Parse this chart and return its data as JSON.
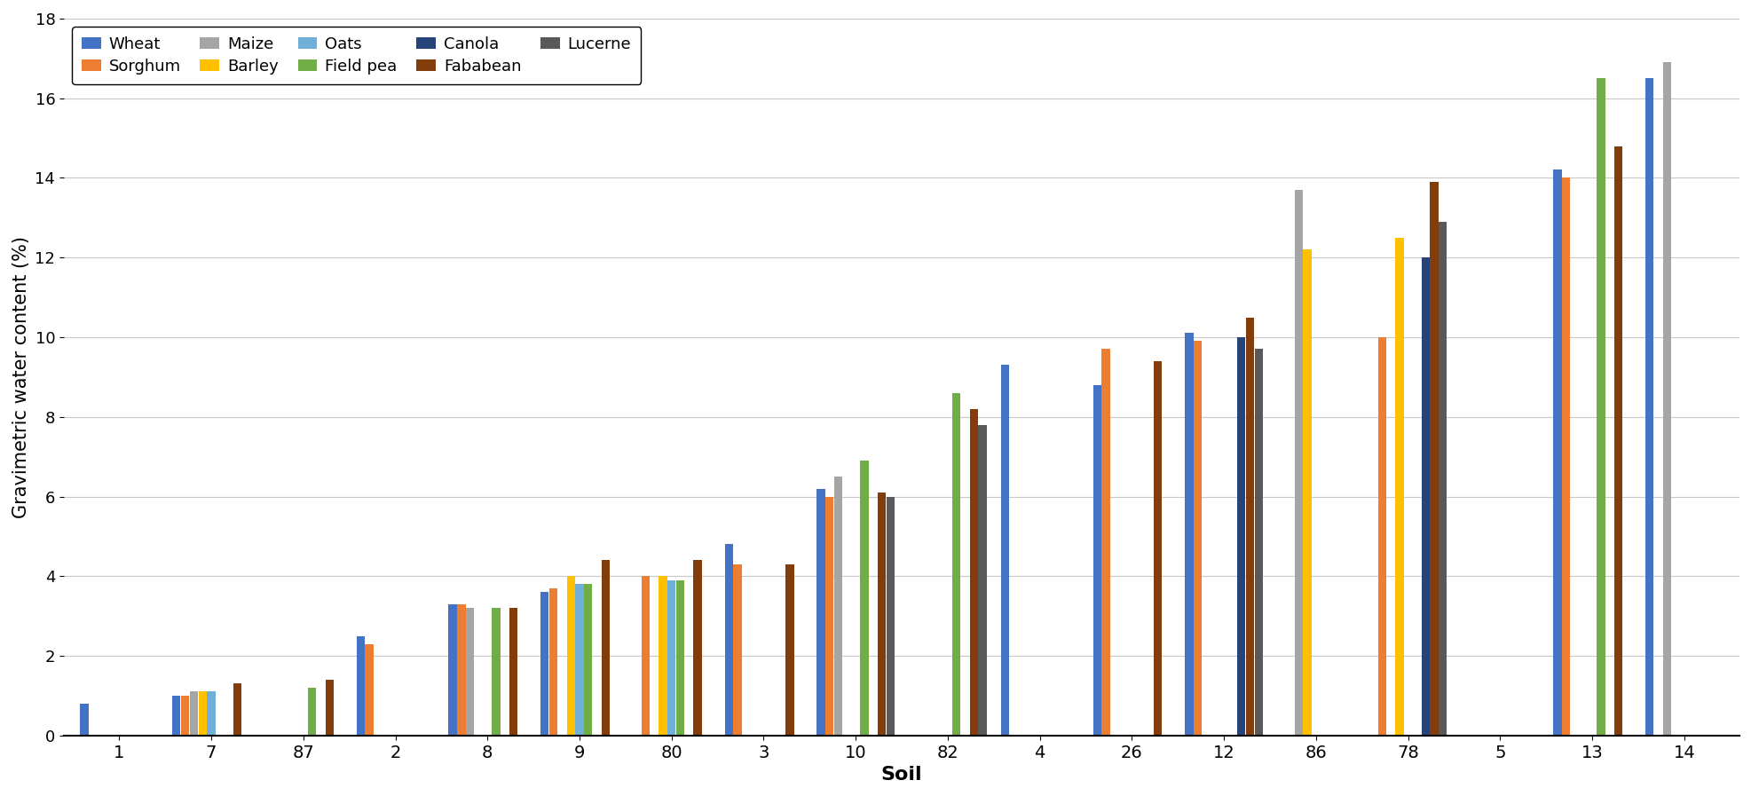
{
  "soils": [
    "1",
    "7",
    "87",
    "2",
    "8",
    "9",
    "80",
    "3",
    "10",
    "82",
    "4",
    "26",
    "12",
    "86",
    "78",
    "5",
    "13",
    "14"
  ],
  "crops": [
    "Wheat",
    "Sorghum",
    "Maize",
    "Barley",
    "Oats",
    "Field pea",
    "Canola",
    "Fababean",
    "Lucerne"
  ],
  "colors": [
    "#4472C4",
    "#ED7D31",
    "#A5A5A5",
    "#FFC000",
    "#70B0D8",
    "#70AD47",
    "#264478",
    "#843C0C",
    "#595959"
  ],
  "values": {
    "Wheat": [
      0.8,
      1.0,
      null,
      2.5,
      3.3,
      3.6,
      null,
      4.8,
      6.2,
      null,
      9.3,
      8.8,
      10.1,
      null,
      null,
      null,
      14.2,
      16.5
    ],
    "Sorghum": [
      null,
      1.0,
      null,
      2.3,
      3.3,
      3.7,
      4.0,
      4.3,
      6.0,
      null,
      null,
      9.7,
      9.9,
      null,
      10.0,
      null,
      14.0,
      null
    ],
    "Maize": [
      null,
      1.1,
      null,
      null,
      3.2,
      null,
      null,
      null,
      6.5,
      null,
      null,
      null,
      null,
      13.7,
      null,
      null,
      null,
      16.9
    ],
    "Barley": [
      null,
      1.1,
      null,
      null,
      null,
      4.0,
      4.0,
      null,
      null,
      null,
      null,
      null,
      null,
      12.2,
      12.5,
      null,
      null,
      null
    ],
    "Oats": [
      null,
      1.1,
      null,
      null,
      null,
      3.8,
      3.9,
      null,
      null,
      null,
      null,
      null,
      null,
      null,
      null,
      null,
      null,
      null
    ],
    "Field pea": [
      null,
      null,
      1.2,
      null,
      3.2,
      3.8,
      3.9,
      null,
      6.9,
      8.6,
      null,
      null,
      null,
      null,
      null,
      null,
      16.5,
      null
    ],
    "Canola": [
      null,
      null,
      null,
      null,
      null,
      null,
      null,
      null,
      null,
      null,
      null,
      null,
      10.0,
      null,
      12.0,
      null,
      null,
      null
    ],
    "Fababean": [
      null,
      1.3,
      1.4,
      null,
      3.2,
      4.4,
      4.4,
      4.3,
      6.1,
      8.2,
      null,
      9.4,
      10.5,
      null,
      13.9,
      null,
      14.8,
      null
    ],
    "Lucerne": [
      null,
      null,
      null,
      null,
      null,
      null,
      null,
      null,
      6.0,
      7.8,
      null,
      null,
      9.7,
      null,
      12.9,
      null,
      null,
      null
    ]
  },
  "ylabel": "Gravimetric water content (%)",
  "xlabel": "Soil",
  "ylim": [
    0,
    18
  ],
  "yticks": [
    0,
    2,
    4,
    6,
    8,
    10,
    12,
    14,
    16,
    18
  ],
  "bg_color": "#FFFFFF",
  "grid_color": "#C8C8C8"
}
